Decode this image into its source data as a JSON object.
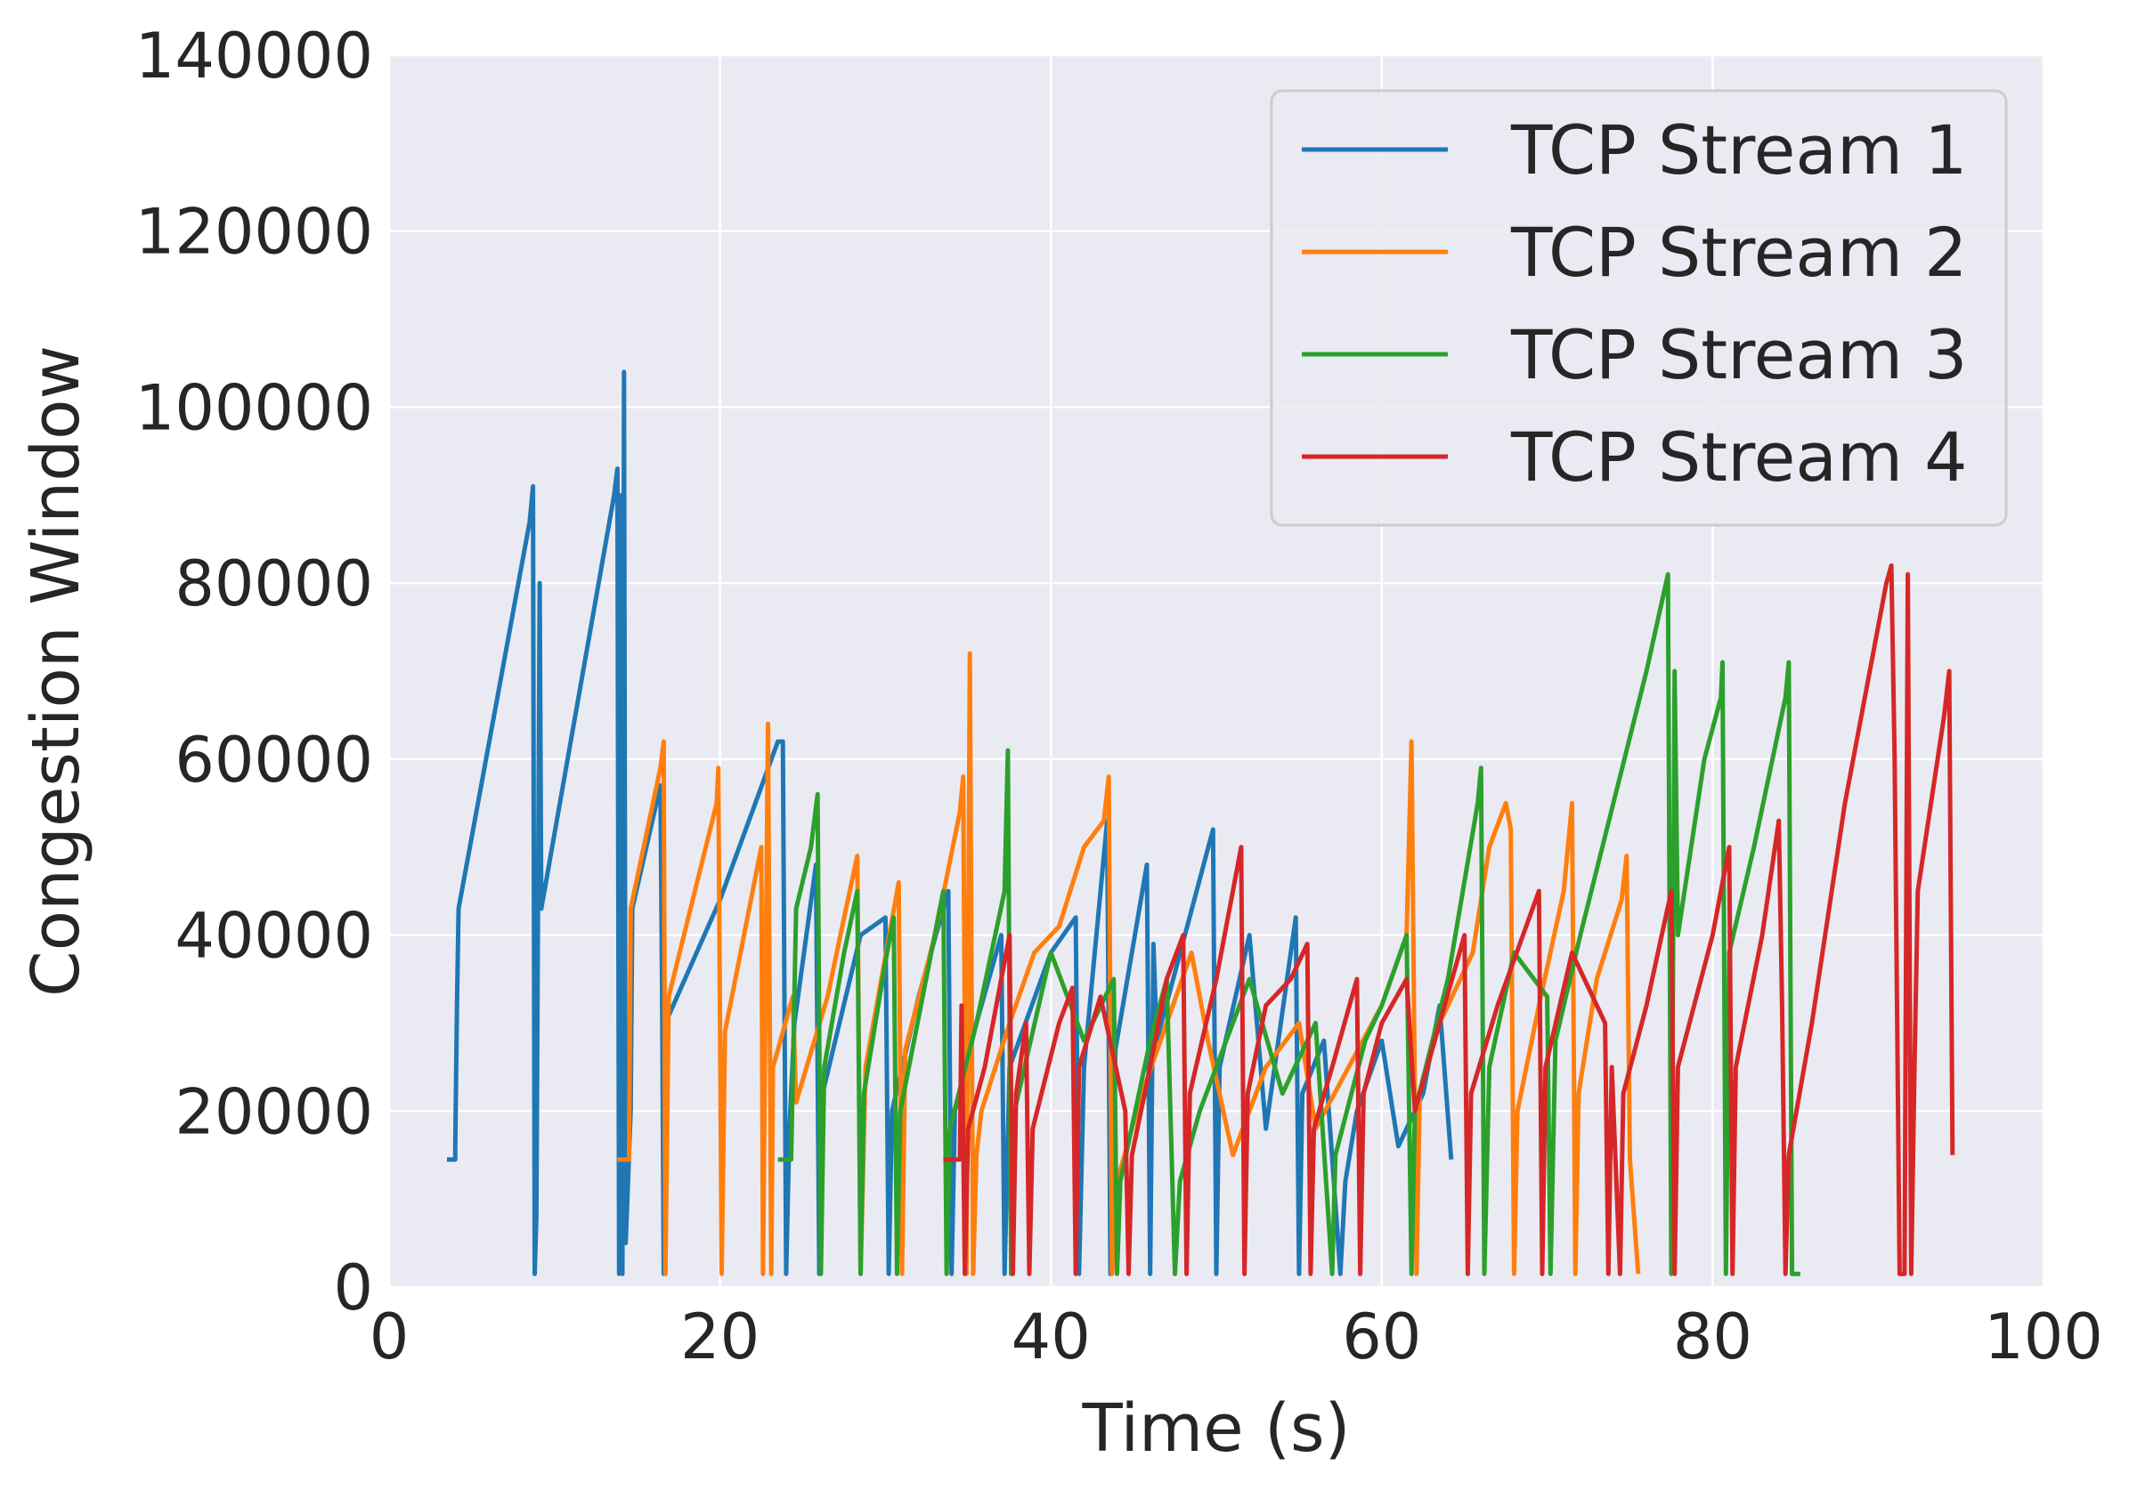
{
  "chart_data": {
    "type": "line",
    "title": "",
    "xlabel": "Time (s)",
    "ylabel": "Congestion Window",
    "xlim": [
      0,
      100
    ],
    "ylim": [
      0,
      140000
    ],
    "x_ticks": [
      "0",
      "20",
      "40",
      "60",
      "80",
      "100"
    ],
    "y_ticks": [
      "0",
      "20000",
      "40000",
      "60000",
      "80000",
      "100000",
      "120000",
      "140000"
    ],
    "grid": true,
    "legend_position": "top-right",
    "series": [
      {
        "name": "TCP Stream 1",
        "color": "#1f77b4",
        "points": [
          [
            3.5,
            14500
          ],
          [
            4.0,
            14500
          ],
          [
            4.0,
            16000
          ],
          [
            4.1,
            32000
          ],
          [
            4.2,
            43000
          ],
          [
            8.5,
            87000
          ],
          [
            8.7,
            91000
          ],
          [
            8.8,
            1500
          ],
          [
            8.9,
            8000
          ],
          [
            9.1,
            80000
          ],
          [
            9.2,
            43000
          ],
          [
            13.6,
            90000
          ],
          [
            13.8,
            93000
          ],
          [
            13.9,
            1500
          ],
          [
            14.0,
            45000
          ],
          [
            14.05,
            90000
          ],
          [
            14.1,
            1500
          ],
          [
            14.2,
            104000
          ],
          [
            14.3,
            5000
          ],
          [
            14.6,
            20000
          ],
          [
            14.7,
            43000
          ],
          [
            16.4,
            57000
          ],
          [
            16.5,
            33000
          ],
          [
            16.6,
            1500
          ],
          [
            16.7,
            30000
          ],
          [
            20.0,
            44000
          ],
          [
            23.5,
            62000
          ],
          [
            23.8,
            62000
          ],
          [
            24.0,
            1500
          ],
          [
            24.2,
            18000
          ],
          [
            24.5,
            30000
          ],
          [
            25.8,
            48000
          ],
          [
            26.0,
            1500
          ],
          [
            26.2,
            22000
          ],
          [
            28.5,
            40000
          ],
          [
            30.0,
            42000
          ],
          [
            30.2,
            1500
          ],
          [
            30.4,
            20000
          ],
          [
            32.0,
            33000
          ],
          [
            33.8,
            45000
          ],
          [
            34.0,
            1500
          ],
          [
            34.2,
            20000
          ],
          [
            35.5,
            30000
          ],
          [
            37.0,
            40000
          ],
          [
            37.2,
            1500
          ],
          [
            37.5,
            25000
          ],
          [
            40.0,
            38000
          ],
          [
            41.5,
            42000
          ],
          [
            41.7,
            1500
          ],
          [
            42.0,
            25000
          ],
          [
            43.4,
            53000
          ],
          [
            43.6,
            1500
          ],
          [
            43.9,
            27000
          ],
          [
            45.8,
            48000
          ],
          [
            46.0,
            1500
          ],
          [
            46.2,
            39000
          ],
          [
            46.4,
            28000
          ],
          [
            49.8,
            52000
          ],
          [
            50.0,
            1500
          ],
          [
            50.2,
            25000
          ],
          [
            52.0,
            40000
          ],
          [
            53.0,
            18000
          ],
          [
            54.8,
            42000
          ],
          [
            55.0,
            1500
          ],
          [
            55.2,
            22000
          ],
          [
            56.5,
            28000
          ],
          [
            57.5,
            1500
          ],
          [
            57.8,
            12000
          ],
          [
            58.5,
            20000
          ],
          [
            60.0,
            28000
          ],
          [
            61.0,
            16000
          ],
          [
            62.5,
            22000
          ],
          [
            63.5,
            32000
          ],
          [
            64.2,
            14500
          ]
        ]
      },
      {
        "name": "TCP Stream 2",
        "color": "#ff7f0e",
        "points": [
          [
            13.8,
            14500
          ],
          [
            14.5,
            14500
          ],
          [
            14.6,
            43000
          ],
          [
            16.4,
            59000
          ],
          [
            16.6,
            62000
          ],
          [
            16.7,
            1500
          ],
          [
            16.9,
            33000
          ],
          [
            19.8,
            55000
          ],
          [
            19.9,
            59000
          ],
          [
            20.1,
            1500
          ],
          [
            20.3,
            29000
          ],
          [
            22.5,
            50000
          ],
          [
            22.6,
            1500
          ],
          [
            22.9,
            64000
          ],
          [
            23.1,
            1500
          ],
          [
            23.2,
            25000
          ],
          [
            24.4,
            33000
          ],
          [
            24.6,
            21000
          ],
          [
            26.5,
            33000
          ],
          [
            27.5,
            42000
          ],
          [
            28.3,
            49000
          ],
          [
            28.5,
            1500
          ],
          [
            28.8,
            25000
          ],
          [
            30.8,
            46000
          ],
          [
            31.0,
            1500
          ],
          [
            31.2,
            27000
          ],
          [
            33.0,
            40000
          ],
          [
            34.5,
            54000
          ],
          [
            34.7,
            58000
          ],
          [
            34.9,
            1500
          ],
          [
            35.1,
            72000
          ],
          [
            35.3,
            1500
          ],
          [
            35.5,
            15000
          ],
          [
            35.8,
            20000
          ],
          [
            37.5,
            30000
          ],
          [
            39.0,
            38000
          ],
          [
            40.5,
            41000
          ],
          [
            42.0,
            50000
          ],
          [
            43.2,
            53000
          ],
          [
            43.5,
            58000
          ],
          [
            43.7,
            1500
          ],
          [
            44.0,
            12000
          ],
          [
            45.5,
            22000
          ],
          [
            47.0,
            30000
          ],
          [
            48.5,
            38000
          ],
          [
            49.5,
            28000
          ],
          [
            51.0,
            15000
          ],
          [
            53.0,
            25000
          ],
          [
            55.0,
            30000
          ],
          [
            56.0,
            18000
          ],
          [
            58.0,
            25000
          ],
          [
            60.0,
            32000
          ],
          [
            61.5,
            40000
          ],
          [
            61.8,
            62000
          ],
          [
            62.1,
            1500
          ],
          [
            62.3,
            22000
          ],
          [
            63.5,
            30000
          ],
          [
            65.5,
            38000
          ],
          [
            66.5,
            50000
          ],
          [
            67.5,
            55000
          ],
          [
            67.8,
            52000
          ],
          [
            68.0,
            1500
          ],
          [
            68.2,
            20000
          ],
          [
            69.5,
            32000
          ],
          [
            71.0,
            45000
          ],
          [
            71.5,
            55000
          ],
          [
            71.7,
            1500
          ],
          [
            71.9,
            22000
          ],
          [
            73.0,
            35000
          ],
          [
            74.5,
            44000
          ],
          [
            74.8,
            49000
          ],
          [
            75.0,
            14500
          ],
          [
            75.5,
            1500
          ]
        ]
      },
      {
        "name": "TCP Stream 3",
        "color": "#2ca02c",
        "points": [
          [
            23.5,
            14500
          ],
          [
            24.3,
            14500
          ],
          [
            24.6,
            43000
          ],
          [
            25.5,
            50000
          ],
          [
            25.9,
            56000
          ],
          [
            26.1,
            1500
          ],
          [
            26.3,
            25000
          ],
          [
            27.5,
            38000
          ],
          [
            28.3,
            45000
          ],
          [
            28.5,
            1500
          ],
          [
            28.7,
            22000
          ],
          [
            30.0,
            37000
          ],
          [
            30.5,
            42000
          ],
          [
            30.7,
            1500
          ],
          [
            30.9,
            20000
          ],
          [
            33.5,
            45000
          ],
          [
            33.7,
            1500
          ],
          [
            33.9,
            18000
          ],
          [
            35.5,
            30000
          ],
          [
            37.2,
            45000
          ],
          [
            37.4,
            61000
          ],
          [
            37.6,
            1500
          ],
          [
            37.8,
            20000
          ],
          [
            40.0,
            38000
          ],
          [
            42.0,
            28000
          ],
          [
            43.8,
            35000
          ],
          [
            44.0,
            1500
          ],
          [
            44.2,
            12000
          ],
          [
            46.0,
            28000
          ],
          [
            47.0,
            35000
          ],
          [
            47.5,
            1500
          ],
          [
            47.8,
            12000
          ],
          [
            49.0,
            20000
          ],
          [
            51.0,
            30000
          ],
          [
            52.0,
            35000
          ],
          [
            54.0,
            22000
          ],
          [
            56.0,
            30000
          ],
          [
            57.0,
            1500
          ],
          [
            57.2,
            15000
          ],
          [
            59.0,
            28000
          ],
          [
            60.0,
            32000
          ],
          [
            61.5,
            40000
          ],
          [
            61.8,
            1500
          ],
          [
            62.0,
            20000
          ],
          [
            64.0,
            35000
          ],
          [
            65.8,
            55000
          ],
          [
            66.0,
            59000
          ],
          [
            66.2,
            1500
          ],
          [
            66.5,
            25000
          ],
          [
            68.0,
            38000
          ],
          [
            70.0,
            33000
          ],
          [
            70.2,
            1500
          ],
          [
            70.5,
            28000
          ],
          [
            72.0,
            40000
          ],
          [
            74.0,
            55000
          ],
          [
            76.0,
            70000
          ],
          [
            77.3,
            81000
          ],
          [
            77.5,
            1500
          ],
          [
            77.7,
            70000
          ],
          [
            77.9,
            40000
          ],
          [
            79.5,
            60000
          ],
          [
            80.5,
            67000
          ],
          [
            80.6,
            71000
          ],
          [
            80.8,
            1500
          ],
          [
            81.0,
            38000
          ],
          [
            82.5,
            50000
          ],
          [
            84.4,
            67000
          ],
          [
            84.6,
            71000
          ],
          [
            84.8,
            1500
          ],
          [
            85.3,
            1500
          ]
        ]
      },
      {
        "name": "TCP Stream 4",
        "color": "#d62728",
        "points": [
          [
            33.5,
            14500
          ],
          [
            34.5,
            14500
          ],
          [
            34.6,
            32000
          ],
          [
            34.8,
            1500
          ],
          [
            35.0,
            18000
          ],
          [
            36.0,
            25000
          ],
          [
            37.5,
            40000
          ],
          [
            37.7,
            1500
          ],
          [
            37.9,
            22000
          ],
          [
            38.5,
            30000
          ],
          [
            38.7,
            1500
          ],
          [
            38.9,
            18000
          ],
          [
            40.5,
            30000
          ],
          [
            41.3,
            34000
          ],
          [
            41.5,
            1500
          ],
          [
            41.7,
            25000
          ],
          [
            43.0,
            33000
          ],
          [
            44.5,
            20000
          ],
          [
            44.7,
            1500
          ],
          [
            44.9,
            15000
          ],
          [
            46.0,
            25000
          ],
          [
            47.0,
            35000
          ],
          [
            48.0,
            40000
          ],
          [
            48.2,
            1500
          ],
          [
            48.4,
            22000
          ],
          [
            50.0,
            35000
          ],
          [
            51.5,
            50000
          ],
          [
            51.7,
            1500
          ],
          [
            51.9,
            22000
          ],
          [
            53.0,
            32000
          ],
          [
            54.5,
            35000
          ],
          [
            55.5,
            39000
          ],
          [
            55.7,
            1500
          ],
          [
            55.9,
            18000
          ],
          [
            57.0,
            25000
          ],
          [
            58.5,
            35000
          ],
          [
            58.7,
            1500
          ],
          [
            58.9,
            22000
          ],
          [
            60.0,
            30000
          ],
          [
            61.5,
            35000
          ],
          [
            62.0,
            20000
          ],
          [
            63.5,
            30000
          ],
          [
            65.0,
            40000
          ],
          [
            65.2,
            1500
          ],
          [
            65.4,
            22000
          ],
          [
            67.0,
            32000
          ],
          [
            69.5,
            45000
          ],
          [
            69.7,
            1500
          ],
          [
            69.9,
            25000
          ],
          [
            71.5,
            38000
          ],
          [
            73.5,
            30000
          ],
          [
            73.7,
            1500
          ],
          [
            73.9,
            25000
          ],
          [
            74.4,
            1500
          ],
          [
            74.6,
            22000
          ],
          [
            76.0,
            32000
          ],
          [
            77.5,
            45000
          ],
          [
            77.7,
            1500
          ],
          [
            77.9,
            25000
          ],
          [
            80.0,
            40000
          ],
          [
            81.0,
            50000
          ],
          [
            81.2,
            1500
          ],
          [
            81.4,
            25000
          ],
          [
            83.0,
            40000
          ],
          [
            84.0,
            53000
          ],
          [
            84.2,
            32000
          ],
          [
            84.4,
            1500
          ],
          [
            84.6,
            15000
          ],
          [
            86.0,
            30000
          ],
          [
            88.0,
            55000
          ],
          [
            89.5,
            70000
          ],
          [
            90.5,
            80000
          ],
          [
            90.8,
            82000
          ],
          [
            91.0,
            60000
          ],
          [
            91.3,
            1500
          ],
          [
            91.6,
            1500
          ],
          [
            91.8,
            81000
          ],
          [
            92.0,
            1500
          ],
          [
            92.2,
            25000
          ],
          [
            92.4,
            45000
          ],
          [
            94.0,
            65000
          ],
          [
            94.3,
            70000
          ],
          [
            94.5,
            15000
          ]
        ]
      }
    ]
  }
}
